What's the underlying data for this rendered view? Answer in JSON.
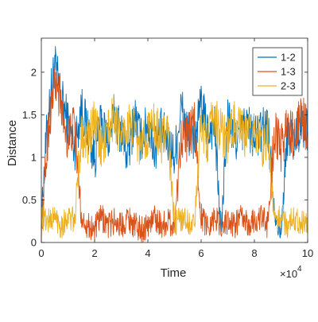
{
  "chart_data": {
    "type": "line",
    "title": "",
    "xlabel": "Time",
    "ylabel": "Distance",
    "x_exponent_label": "×10",
    "x_exponent_power": "4",
    "xlim": [
      0,
      10
    ],
    "ylim": [
      0,
      2.4
    ],
    "xticks": [
      0,
      2,
      4,
      6,
      8,
      10
    ],
    "yticks": [
      0,
      0.5,
      1,
      1.5,
      2
    ],
    "xtick_labels": [
      "0",
      "2",
      "4",
      "6",
      "8",
      "10"
    ],
    "ytick_labels": [
      "0",
      "0.5",
      "1",
      "1.5",
      "2"
    ],
    "grid": false,
    "legend_position": "top-right",
    "series": [
      {
        "name": "1-2",
        "color": "#0072BD",
        "x": [
          0,
          0.25,
          0.5,
          0.75,
          1,
          1.25,
          1.5,
          1.75,
          2,
          2.25,
          2.5,
          2.75,
          3,
          3.25,
          3.5,
          3.75,
          4,
          4.25,
          4.5,
          4.75,
          5,
          5.25,
          5.5,
          5.75,
          6,
          6.25,
          6.5,
          6.75,
          7,
          7.25,
          7.5,
          7.75,
          8,
          8.25,
          8.5,
          8.75,
          9,
          9.25,
          9.5,
          9.75,
          10
        ],
        "values": [
          0.3,
          1.5,
          2.1,
          1.7,
          1.4,
          1.1,
          1.6,
          1.3,
          1.0,
          1.4,
          1.2,
          1.5,
          1.3,
          1.0,
          1.5,
          1.2,
          1.4,
          1.1,
          1.3,
          1.2,
          1.0,
          1.6,
          1.3,
          1.2,
          1.6,
          1.3,
          1.4,
          0.1,
          1.5,
          1.2,
          1.3,
          1.4,
          1.2,
          1.3,
          1.4,
          0.4,
          0.1,
          1.3,
          1.2,
          1.4,
          1.3
        ]
      },
      {
        "name": "1-3",
        "color": "#D95319",
        "x": [
          0,
          0.25,
          0.5,
          0.75,
          1,
          1.25,
          1.5,
          1.75,
          2,
          2.25,
          2.5,
          2.75,
          3,
          3.25,
          3.5,
          3.75,
          4,
          4.25,
          4.5,
          4.75,
          5,
          5.25,
          5.5,
          5.75,
          6,
          6.25,
          6.5,
          6.75,
          7,
          7.25,
          7.5,
          7.75,
          8,
          8.25,
          8.5,
          8.75,
          9,
          9.25,
          9.5,
          9.75,
          10
        ],
        "values": [
          0.1,
          1.3,
          1.9,
          1.6,
          1.2,
          1.4,
          0.3,
          0.2,
          0.15,
          0.3,
          0.2,
          0.25,
          0.2,
          0.3,
          0.2,
          0.15,
          0.2,
          0.3,
          0.2,
          0.25,
          0.2,
          1.3,
          1.2,
          1.4,
          0.3,
          0.2,
          0.3,
          0.2,
          0.25,
          0.2,
          0.3,
          0.2,
          0.25,
          0.3,
          0.2,
          1.3,
          1.1,
          1.4,
          1.2,
          1.5,
          1.3
        ]
      },
      {
        "name": "2-3",
        "color": "#EDB120",
        "x": [
          0,
          0.25,
          0.5,
          0.75,
          1,
          1.25,
          1.5,
          1.75,
          2,
          2.25,
          2.5,
          2.75,
          3,
          3.25,
          3.5,
          3.75,
          4,
          4.25,
          4.5,
          4.75,
          5,
          5.25,
          5.5,
          5.75,
          6,
          6.25,
          6.5,
          6.75,
          7,
          7.25,
          7.5,
          7.75,
          8,
          8.25,
          8.5,
          8.75,
          9,
          9.25,
          9.5,
          9.75,
          10
        ],
        "values": [
          0.3,
          0.25,
          0.3,
          0.2,
          0.3,
          0.25,
          1.3,
          1.2,
          1.4,
          1.1,
          1.3,
          1.5,
          1.2,
          1.4,
          1.3,
          1.1,
          1.3,
          1.4,
          1.2,
          1.3,
          0.2,
          0.3,
          0.25,
          0.2,
          1.4,
          1.2,
          1.5,
          1.3,
          1.2,
          1.4,
          1.3,
          1.2,
          1.4,
          1.1,
          1.3,
          0.25,
          0.3,
          0.2,
          0.3,
          0.25,
          0.2
        ]
      }
    ]
  }
}
